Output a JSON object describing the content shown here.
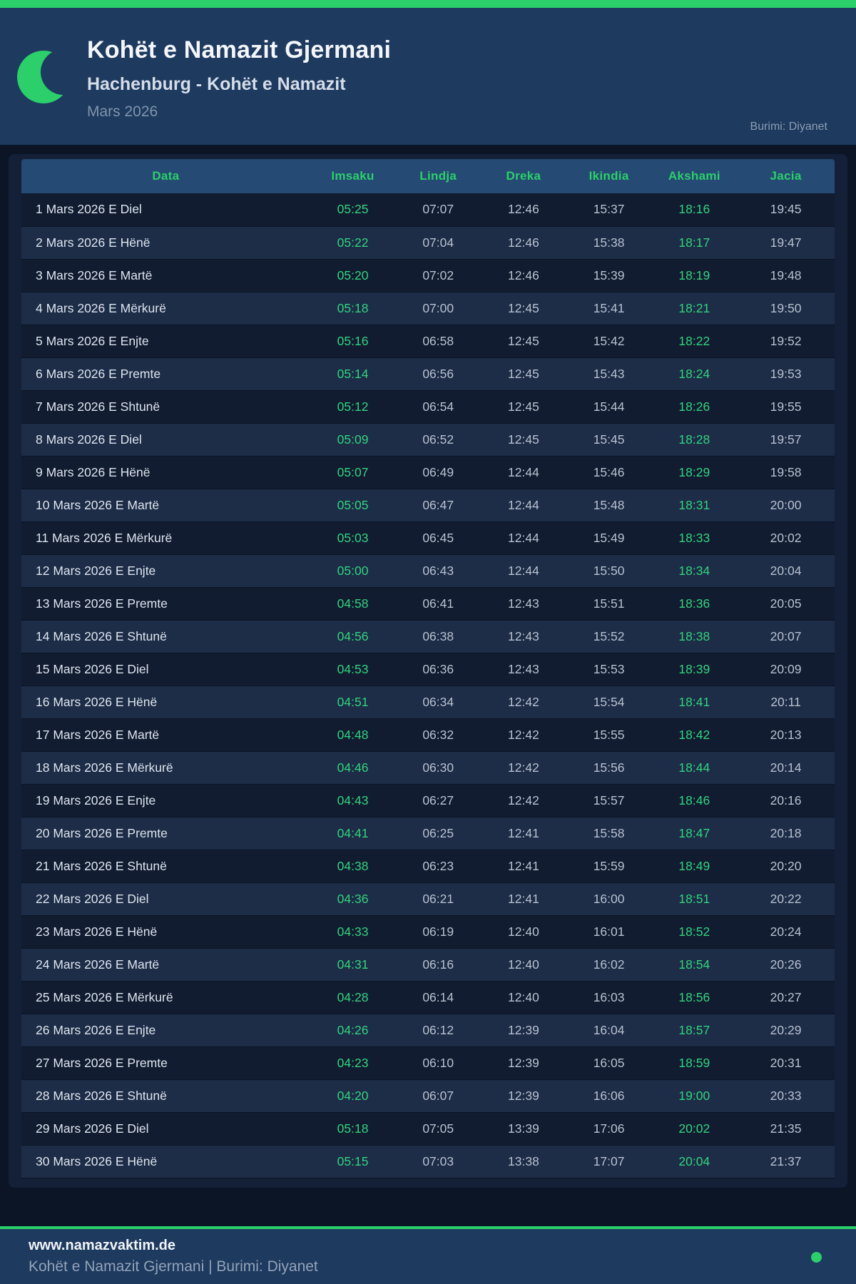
{
  "header": {
    "title": "Kohët e Namazit Gjermani",
    "subtitle": "Hachenburg - Kohët e Namazit",
    "month": "Mars 2026",
    "source": "Burimi: Diyanet"
  },
  "table": {
    "columns": [
      "Data",
      "Imsaku",
      "Lindja",
      "Dreka",
      "Ikindia",
      "Akshami",
      "Jacia"
    ],
    "green_time_columns": [
      0,
      4
    ],
    "rows": [
      {
        "date": "1 Mars 2026 E Diel",
        "times": [
          "05:25",
          "07:07",
          "12:46",
          "15:37",
          "18:16",
          "19:45"
        ]
      },
      {
        "date": "2 Mars 2026 E Hënë",
        "times": [
          "05:22",
          "07:04",
          "12:46",
          "15:38",
          "18:17",
          "19:47"
        ]
      },
      {
        "date": "3 Mars 2026 E Martë",
        "times": [
          "05:20",
          "07:02",
          "12:46",
          "15:39",
          "18:19",
          "19:48"
        ]
      },
      {
        "date": "4 Mars 2026 E Mërkurë",
        "times": [
          "05:18",
          "07:00",
          "12:45",
          "15:41",
          "18:21",
          "19:50"
        ]
      },
      {
        "date": "5 Mars 2026 E Enjte",
        "times": [
          "05:16",
          "06:58",
          "12:45",
          "15:42",
          "18:22",
          "19:52"
        ]
      },
      {
        "date": "6 Mars 2026 E Premte",
        "times": [
          "05:14",
          "06:56",
          "12:45",
          "15:43",
          "18:24",
          "19:53"
        ]
      },
      {
        "date": "7 Mars 2026 E Shtunë",
        "times": [
          "05:12",
          "06:54",
          "12:45",
          "15:44",
          "18:26",
          "19:55"
        ]
      },
      {
        "date": "8 Mars 2026 E Diel",
        "times": [
          "05:09",
          "06:52",
          "12:45",
          "15:45",
          "18:28",
          "19:57"
        ]
      },
      {
        "date": "9 Mars 2026 E Hënë",
        "times": [
          "05:07",
          "06:49",
          "12:44",
          "15:46",
          "18:29",
          "19:58"
        ]
      },
      {
        "date": "10 Mars 2026 E Martë",
        "times": [
          "05:05",
          "06:47",
          "12:44",
          "15:48",
          "18:31",
          "20:00"
        ]
      },
      {
        "date": "11 Mars 2026 E Mërkurë",
        "times": [
          "05:03",
          "06:45",
          "12:44",
          "15:49",
          "18:33",
          "20:02"
        ]
      },
      {
        "date": "12 Mars 2026 E Enjte",
        "times": [
          "05:00",
          "06:43",
          "12:44",
          "15:50",
          "18:34",
          "20:04"
        ]
      },
      {
        "date": "13 Mars 2026 E Premte",
        "times": [
          "04:58",
          "06:41",
          "12:43",
          "15:51",
          "18:36",
          "20:05"
        ]
      },
      {
        "date": "14 Mars 2026 E Shtunë",
        "times": [
          "04:56",
          "06:38",
          "12:43",
          "15:52",
          "18:38",
          "20:07"
        ]
      },
      {
        "date": "15 Mars 2026 E Diel",
        "times": [
          "04:53",
          "06:36",
          "12:43",
          "15:53",
          "18:39",
          "20:09"
        ]
      },
      {
        "date": "16 Mars 2026 E Hënë",
        "times": [
          "04:51",
          "06:34",
          "12:42",
          "15:54",
          "18:41",
          "20:11"
        ]
      },
      {
        "date": "17 Mars 2026 E Martë",
        "times": [
          "04:48",
          "06:32",
          "12:42",
          "15:55",
          "18:42",
          "20:13"
        ]
      },
      {
        "date": "18 Mars 2026 E Mërkurë",
        "times": [
          "04:46",
          "06:30",
          "12:42",
          "15:56",
          "18:44",
          "20:14"
        ]
      },
      {
        "date": "19 Mars 2026 E Enjte",
        "times": [
          "04:43",
          "06:27",
          "12:42",
          "15:57",
          "18:46",
          "20:16"
        ]
      },
      {
        "date": "20 Mars 2026 E Premte",
        "times": [
          "04:41",
          "06:25",
          "12:41",
          "15:58",
          "18:47",
          "20:18"
        ]
      },
      {
        "date": "21 Mars 2026 E Shtunë",
        "times": [
          "04:38",
          "06:23",
          "12:41",
          "15:59",
          "18:49",
          "20:20"
        ]
      },
      {
        "date": "22 Mars 2026 E Diel",
        "times": [
          "04:36",
          "06:21",
          "12:41",
          "16:00",
          "18:51",
          "20:22"
        ]
      },
      {
        "date": "23 Mars 2026 E Hënë",
        "times": [
          "04:33",
          "06:19",
          "12:40",
          "16:01",
          "18:52",
          "20:24"
        ]
      },
      {
        "date": "24 Mars 2026 E Martë",
        "times": [
          "04:31",
          "06:16",
          "12:40",
          "16:02",
          "18:54",
          "20:26"
        ]
      },
      {
        "date": "25 Mars 2026 E Mërkurë",
        "times": [
          "04:28",
          "06:14",
          "12:40",
          "16:03",
          "18:56",
          "20:27"
        ]
      },
      {
        "date": "26 Mars 2026 E Enjte",
        "times": [
          "04:26",
          "06:12",
          "12:39",
          "16:04",
          "18:57",
          "20:29"
        ]
      },
      {
        "date": "27 Mars 2026 E Premte",
        "times": [
          "04:23",
          "06:10",
          "12:39",
          "16:05",
          "18:59",
          "20:31"
        ]
      },
      {
        "date": "28 Mars 2026 E Shtunë",
        "times": [
          "04:20",
          "06:07",
          "12:39",
          "16:06",
          "19:00",
          "20:33"
        ]
      },
      {
        "date": "29 Mars 2026 E Diel",
        "times": [
          "05:18",
          "07:05",
          "13:39",
          "17:06",
          "20:02",
          "21:35"
        ]
      },
      {
        "date": "30 Mars 2026 E Hënë",
        "times": [
          "05:15",
          "07:03",
          "13:38",
          "17:07",
          "20:04",
          "21:37"
        ]
      }
    ]
  },
  "footer": {
    "site": "www.namazvaktim.de",
    "tagline": "Kohët e Namazit Gjermani | Burimi: Diyanet"
  },
  "colors": {
    "accent_green": "#2bd06a",
    "time_green": "#31d47c",
    "header_bg": "#1e3a5f",
    "table_header_bg": "#254a73",
    "page_bg": "#0c1526"
  }
}
